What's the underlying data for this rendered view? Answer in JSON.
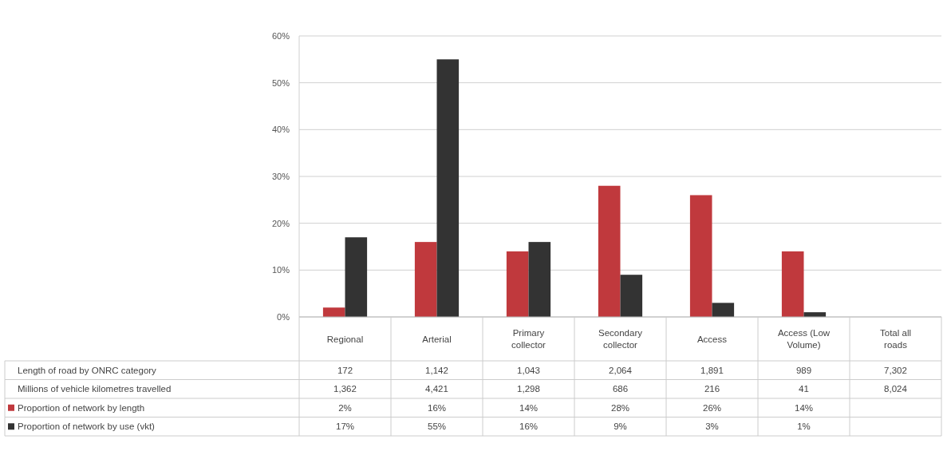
{
  "chart_data": [
    {
      "type": "bar",
      "categories": [
        "Regional",
        "Arterial",
        "Primary collector",
        "Secondary collector",
        "Access",
        "Access (Low Volume)",
        "Total all roads"
      ],
      "series": [
        {
          "name": "Proportion of network by length",
          "color": "#c0393d",
          "values": [
            2,
            16,
            14,
            28,
            26,
            14,
            null
          ],
          "value_labels": [
            "2%",
            "16%",
            "14%",
            "28%",
            "26%",
            "14%",
            null
          ]
        },
        {
          "name": "Proportion of network by use (vkt)",
          "color": "#333333",
          "values": [
            17,
            55,
            16,
            9,
            3,
            1,
            null
          ],
          "value_labels": [
            "17%",
            "55%",
            "16%",
            "9%",
            "3%",
            "1%",
            null
          ]
        }
      ],
      "ylim": [
        0,
        60
      ],
      "yticks": [
        {
          "value": 0,
          "label": "0%"
        },
        {
          "value": 10,
          "label": "10%"
        },
        {
          "value": 20,
          "label": "20%"
        },
        {
          "value": 30,
          "label": "30%"
        },
        {
          "value": 40,
          "label": "40%"
        },
        {
          "value": 50,
          "label": "50%"
        },
        {
          "value": 60,
          "label": "60%"
        }
      ],
      "grid": "y",
      "legend": "bottom"
    },
    {
      "type": "other",
      "annotations": [
        "Length of road by ONRC category",
        "172",
        "1,142",
        "1,043",
        "2,064",
        "1,891",
        "989",
        "7,302",
        "Millions of vehicle kilometres travelled",
        "1,362",
        "4,421",
        "1,298",
        "686",
        "216",
        "41",
        "8,024"
      ]
    }
  ]
}
